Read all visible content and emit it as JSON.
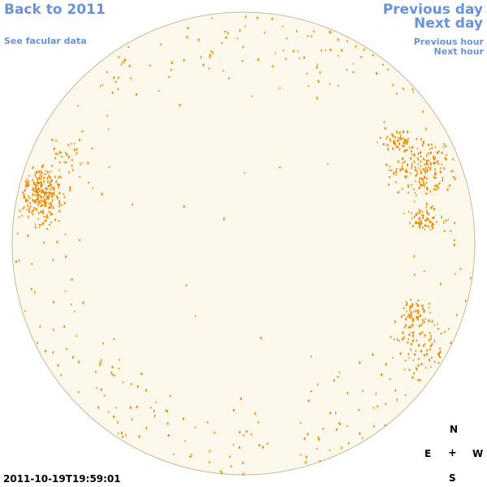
{
  "nav": {
    "back": "Back to 2011",
    "facular": "See facular data",
    "previous_day": "Previous day",
    "next_day": "Next day",
    "previous_hour": "Previous hour",
    "next_hour": "Next hour"
  },
  "timestamp": "2011-10-19T19:59:01",
  "compass": {
    "north": "N",
    "east": "E",
    "center": "+",
    "west": "W",
    "south": "S"
  },
  "colors": {
    "disk_fill": "#fdf8ec",
    "disk_edge": "#c9b896",
    "magnetic": "#ef8a00"
  }
}
